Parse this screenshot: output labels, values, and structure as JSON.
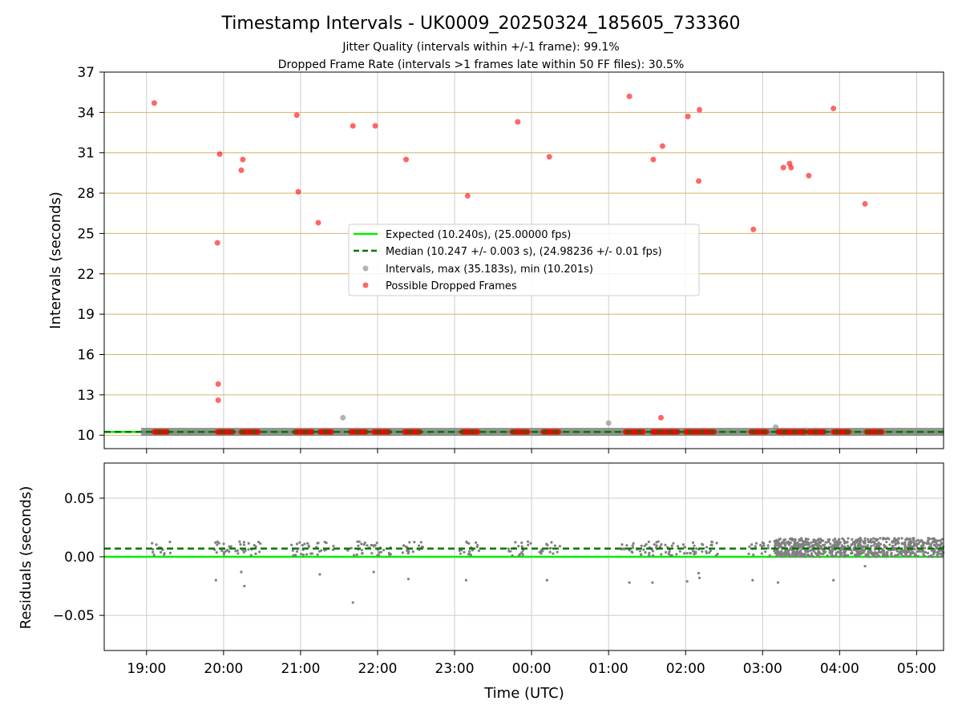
{
  "chart_data": [
    {
      "type": "scatter",
      "title": "Timestamp Intervals - UK0009_20250324_185605_733360",
      "subtitles": [
        "Jitter Quality (intervals within +/-1 frame): 99.1%",
        "Dropped Frame Rate (intervals >1 frames late within 50 FF files): 30.5%"
      ],
      "ylabel": "Intervals (seconds)",
      "ylim": [
        9,
        37
      ],
      "yticks": [
        "10",
        "13",
        "16",
        "19",
        "22",
        "25",
        "28",
        "31",
        "34",
        "37"
      ],
      "xlim_hours": [
        18.45,
        29.35
      ],
      "grid": true,
      "legend_position": "center",
      "legend": [
        "Expected (10.240s), (25.00000 fps)",
        "Median (10.247 +/- 0.003 s), (24.98236 +/- 0.01 fps)",
        "Intervals, max (35.183s), min (10.201s)",
        "Possible Dropped Frames"
      ],
      "expected": 10.24,
      "median": 10.247,
      "colors": {
        "expected": "#00ee00",
        "median": "#007700",
        "intervals": "#808080",
        "dropped": "#ff0000",
        "ygrid": "#d4b46a",
        "xgrid": "#cccccc"
      },
      "intervals_band": [
        [
          18.93,
          29.35
        ]
      ],
      "intervals_outliers": [
        [
          21.55,
          11.3
        ],
        [
          1.0,
          10.9
        ],
        [
          3.17,
          10.6
        ]
      ],
      "dropped_clusters": [
        [
          19.1,
          19.27
        ],
        [
          19.92,
          20.12
        ],
        [
          20.23,
          20.45
        ],
        [
          20.93,
          21.15
        ],
        [
          21.25,
          21.4
        ],
        [
          21.65,
          21.85
        ],
        [
          21.95,
          22.15
        ],
        [
          22.35,
          22.55
        ],
        [
          23.1,
          23.3
        ],
        [
          23.75,
          23.95
        ],
        [
          24.15,
          24.35
        ],
        [
          25.22,
          25.45
        ],
        [
          25.57,
          25.9
        ],
        [
          26.0,
          26.37
        ],
        [
          26.85,
          27.05
        ],
        [
          27.2,
          27.55
        ],
        [
          27.6,
          27.8
        ],
        [
          27.92,
          28.12
        ],
        [
          28.35,
          28.55
        ]
      ],
      "dropped_points": [
        [
          19.1,
          34.7
        ],
        [
          19.92,
          24.3
        ],
        [
          19.93,
          13.8
        ],
        [
          19.93,
          12.6
        ],
        [
          19.95,
          30.9
        ],
        [
          20.23,
          29.7
        ],
        [
          20.25,
          30.5
        ],
        [
          20.95,
          33.8
        ],
        [
          20.97,
          28.1
        ],
        [
          21.23,
          25.8
        ],
        [
          21.68,
          33.0
        ],
        [
          21.97,
          33.0
        ],
        [
          22.37,
          30.5
        ],
        [
          23.17,
          27.8
        ],
        [
          23.82,
          33.3
        ],
        [
          24.23,
          30.7
        ],
        [
          25.27,
          35.2
        ],
        [
          25.58,
          30.5
        ],
        [
          25.68,
          11.3
        ],
        [
          25.7,
          31.5
        ],
        [
          26.03,
          33.7
        ],
        [
          26.17,
          28.9
        ],
        [
          26.18,
          34.2
        ],
        [
          26.88,
          25.3
        ],
        [
          27.27,
          29.9
        ],
        [
          27.35,
          30.2
        ],
        [
          27.37,
          29.9
        ],
        [
          27.6,
          29.3
        ],
        [
          27.92,
          34.3
        ],
        [
          28.33,
          27.2
        ]
      ]
    },
    {
      "type": "scatter",
      "ylabel": "Residuals (seconds)",
      "xlabel": "Time (UTC)",
      "ylim": [
        -0.08,
        0.08
      ],
      "yticks": [
        "0.05",
        "0.00",
        "−0.05"
      ],
      "yticks_values": [
        0.05,
        0.0,
        -0.05
      ],
      "xticks": [
        "19:00",
        "20:00",
        "21:00",
        "22:00",
        "23:00",
        "00:00",
        "01:00",
        "02:00",
        "03:00",
        "04:00",
        "05:00"
      ],
      "xticks_hours": [
        19,
        20,
        21,
        22,
        23,
        24,
        25,
        26,
        27,
        28,
        29
      ],
      "expected_residual": 0.0,
      "median_residual": 0.007,
      "residual_outliers": [
        [
          19.9,
          -0.02
        ],
        [
          20.23,
          -0.013
        ],
        [
          20.27,
          -0.025
        ],
        [
          21.25,
          -0.015
        ],
        [
          21.68,
          -0.039
        ],
        [
          21.95,
          -0.013
        ],
        [
          22.4,
          -0.019
        ],
        [
          23.15,
          -0.02
        ],
        [
          24.2,
          -0.02
        ],
        [
          25.27,
          -0.022
        ],
        [
          25.57,
          -0.022
        ],
        [
          26.02,
          -0.021
        ],
        [
          26.17,
          -0.014
        ],
        [
          26.18,
          -0.018
        ],
        [
          26.87,
          -0.02
        ],
        [
          27.2,
          -0.022
        ],
        [
          27.92,
          -0.02
        ],
        [
          28.33,
          -0.008
        ]
      ]
    }
  ]
}
